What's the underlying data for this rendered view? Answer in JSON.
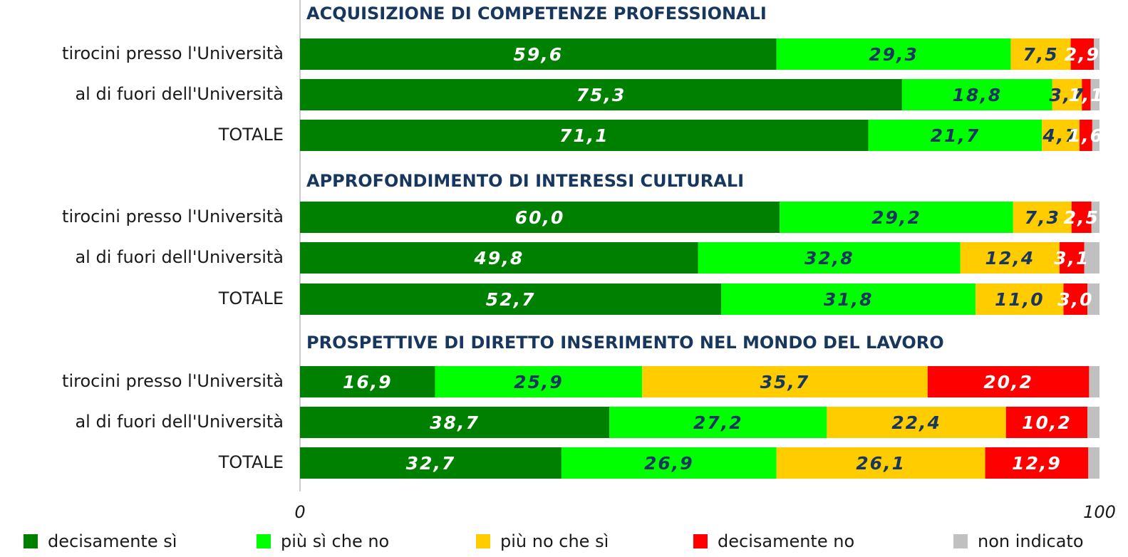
{
  "chart_data": [
    {
      "type": "stacked-bar-horizontal",
      "title": "ACQUISIZIONE DI COMPETENZE PROFESSIONALI",
      "categories": [
        "tirocini presso l'Università",
        "al di fuori dell'Università",
        "TOTALE"
      ],
      "xlim": [
        0,
        100
      ],
      "series": [
        {
          "name": "decisamente sì",
          "color": "#008000",
          "values": [
            59.6,
            75.3,
            71.1
          ],
          "value_labels": [
            "59,6",
            "75,3",
            "71,1"
          ]
        },
        {
          "name": "più sì che no",
          "color": "#00ff00",
          "values": [
            29.3,
            18.8,
            21.7
          ],
          "value_labels": [
            "29,3",
            "18,8",
            "21,7"
          ]
        },
        {
          "name": "più no che sì",
          "color": "#ffcc00",
          "values": [
            7.5,
            3.7,
            4.7
          ],
          "value_labels": [
            "7,5",
            "3,7",
            "4,7"
          ]
        },
        {
          "name": "decisamente no",
          "color": "#ff0000",
          "values": [
            2.9,
            1.1,
            1.6
          ],
          "value_labels": [
            "2,9",
            "1,1",
            "1,6"
          ]
        },
        {
          "name": "non indicato",
          "color": "#c0c0c0",
          "values": [
            0.7,
            1.1,
            0.9
          ]
        }
      ]
    },
    {
      "type": "stacked-bar-horizontal",
      "title": "APPROFONDIMENTO DI INTERESSI CULTURALI",
      "categories": [
        "tirocini presso l'Università",
        "al di fuori dell'Università",
        "TOTALE"
      ],
      "xlim": [
        0,
        100
      ],
      "series": [
        {
          "name": "decisamente sì",
          "color": "#008000",
          "values": [
            60.0,
            49.8,
            52.7
          ],
          "value_labels": [
            "60,0",
            "49,8",
            "52,7"
          ]
        },
        {
          "name": "più sì che no",
          "color": "#00ff00",
          "values": [
            29.2,
            32.8,
            31.8
          ],
          "value_labels": [
            "29,2",
            "32,8",
            "31,8"
          ]
        },
        {
          "name": "più no che sì",
          "color": "#ffcc00",
          "values": [
            7.3,
            12.4,
            11.0
          ],
          "value_labels": [
            "7,3",
            "12,4",
            "11,0"
          ]
        },
        {
          "name": "decisamente no",
          "color": "#ff0000",
          "values": [
            2.5,
            3.1,
            3.0
          ],
          "value_labels": [
            "2,5",
            "3,1",
            "3,0"
          ]
        },
        {
          "name": "non indicato",
          "color": "#c0c0c0",
          "values": [
            1.0,
            1.9,
            1.5
          ]
        }
      ]
    },
    {
      "type": "stacked-bar-horizontal",
      "title": "PROSPETTIVE DI DIRETTO INSERIMENTO NEL MONDO DEL LAVORO",
      "categories": [
        "tirocini presso l'Università",
        "al di fuori dell'Università",
        "TOTALE"
      ],
      "xlim": [
        0,
        100
      ],
      "xticks": [
        0,
        100
      ],
      "series": [
        {
          "name": "decisamente sì",
          "color": "#008000",
          "values": [
            16.9,
            38.7,
            32.7
          ],
          "value_labels": [
            "16,9",
            "38,7",
            "32,7"
          ]
        },
        {
          "name": "più sì che no",
          "color": "#00ff00",
          "values": [
            25.9,
            27.2,
            26.9
          ],
          "value_labels": [
            "25,9",
            "27,2",
            "26,9"
          ]
        },
        {
          "name": "più no che sì",
          "color": "#ffcc00",
          "values": [
            35.7,
            22.4,
            26.1
          ],
          "value_labels": [
            "35,7",
            "22,4",
            "26,1"
          ]
        },
        {
          "name": "decisamente no",
          "color": "#ff0000",
          "values": [
            20.2,
            10.2,
            12.9
          ],
          "value_labels": [
            "20,2",
            "10,2",
            "12,9"
          ]
        },
        {
          "name": "non indicato",
          "color": "#c0c0c0",
          "values": [
            1.3,
            1.5,
            1.4
          ]
        }
      ]
    }
  ]
}
